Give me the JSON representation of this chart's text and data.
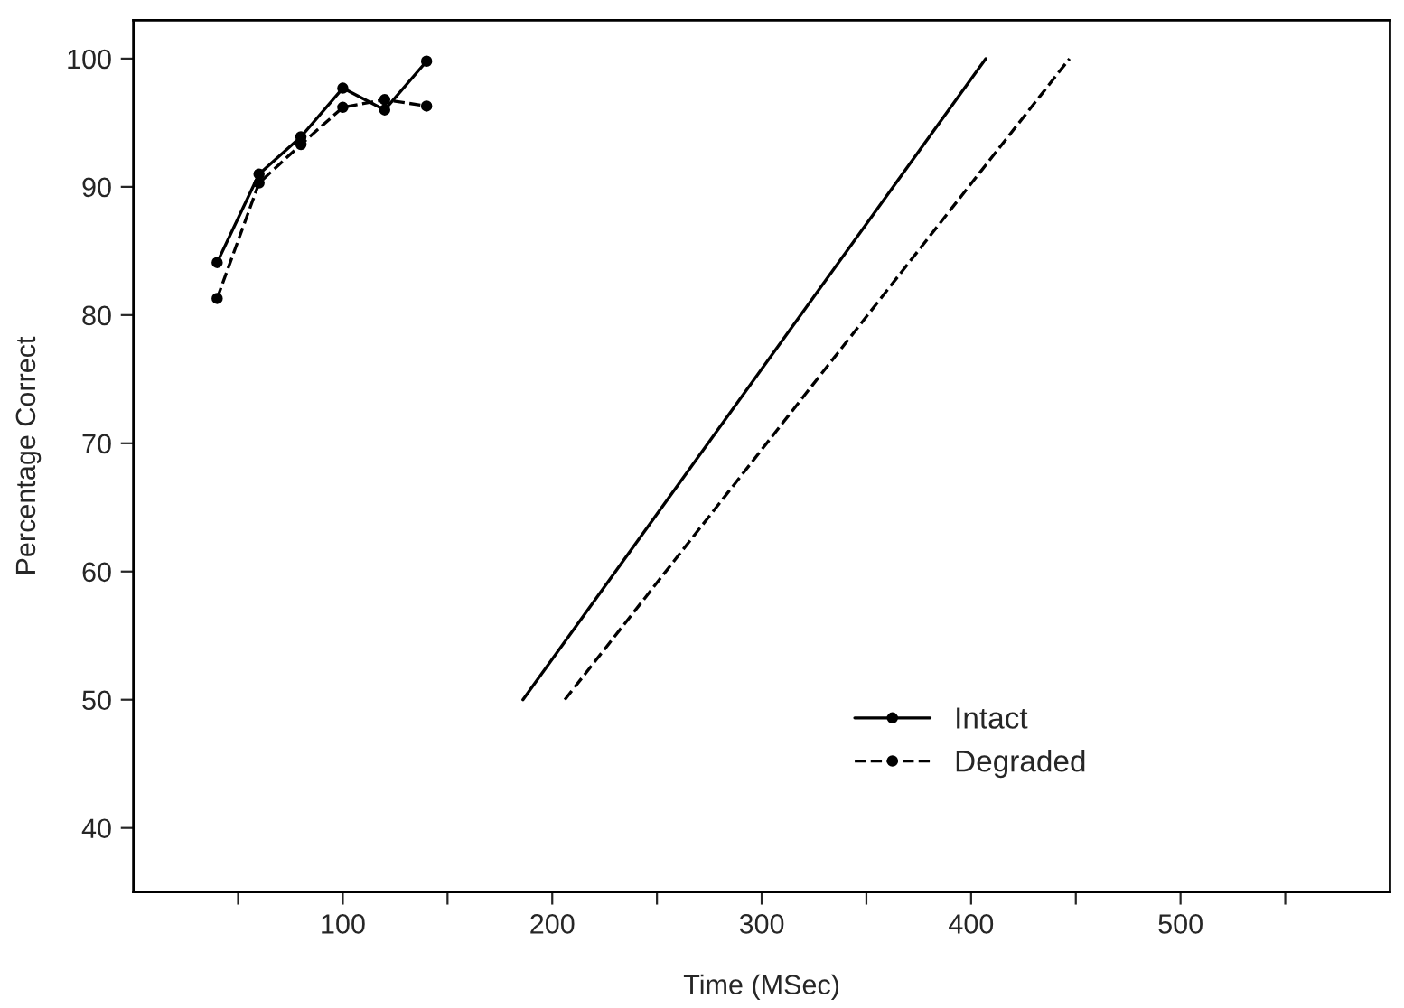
{
  "chart_data": {
    "type": "line",
    "xlabel": "Time (MSec)",
    "ylabel": "Percentage Correct",
    "series": [
      {
        "name": "Intact",
        "color": "#000000",
        "line_style": "solid",
        "marker": "circle",
        "x": [
          40,
          60,
          80,
          100,
          120,
          140
        ],
        "values": [
          84.1,
          91.0,
          93.9,
          97.7,
          96.0,
          99.8
        ]
      },
      {
        "name": "Degraded",
        "color": "#000000",
        "line_style": "dashed",
        "marker": "circle",
        "x": [
          40,
          60,
          80,
          100,
          120,
          140
        ],
        "values": [
          81.3,
          90.3,
          93.3,
          96.2,
          96.8,
          96.3
        ]
      },
      {
        "color": "#000000",
        "line_style": "solid",
        "marker": "none",
        "x": [
          186,
          407
        ],
        "values": [
          50,
          100
        ]
      },
      {
        "color": "#000000",
        "line_style": "dashed",
        "marker": "none",
        "x": [
          206,
          447
        ],
        "values": [
          50,
          100
        ]
      }
    ],
    "xlim": [
      0,
      600
    ],
    "ylim": [
      35,
      103
    ],
    "xticks": [
      {
        "value": 50,
        "label": null
      },
      100,
      {
        "value": 150,
        "label": null
      },
      200,
      {
        "value": 250,
        "label": null
      },
      300,
      {
        "value": 350,
        "label": null
      },
      400,
      {
        "value": 450,
        "label": null
      },
      500,
      {
        "value": 550,
        "label": null
      }
    ],
    "yticks": [
      40,
      50,
      60,
      70,
      80,
      90,
      100
    ],
    "legend": "bottom right",
    "grid": false
  }
}
